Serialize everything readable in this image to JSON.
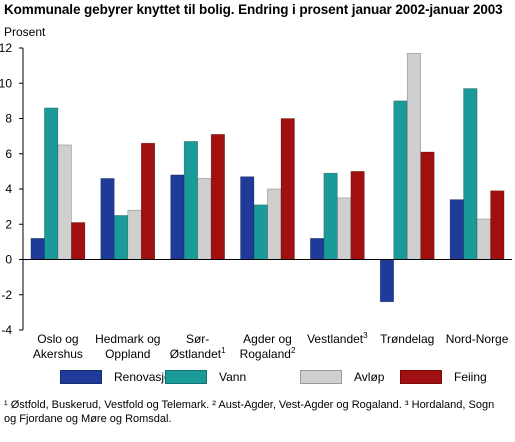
{
  "title": "Kommunale gebyrer knyttet til bolig. Endring i prosent januar 2002-januar 2003",
  "footnote": "¹ Østfold, Buskerud, Vestfold og Telemark. ² Aust-Agder, Vest-Agder og Rogaland. ³ Hordaland, Sogn og Fjordane og Møre og Romsdal.",
  "chart_data": {
    "type": "bar",
    "ylabel": "Prosent",
    "ylim": [
      -4,
      12
    ],
    "yticks": [
      -4,
      -2,
      0,
      2,
      4,
      6,
      8,
      10,
      12
    ],
    "grid": false,
    "legend_position": "bottom",
    "categories": [
      {
        "lines": [
          "Oslo og",
          "Akershus"
        ]
      },
      {
        "lines": [
          "Hedmark og",
          "Oppland"
        ]
      },
      {
        "lines": [
          "Sør-",
          "Østlandet"
        ],
        "sup": "1"
      },
      {
        "lines": [
          "Agder og",
          "Rogaland"
        ],
        "sup": "2"
      },
      {
        "lines": [
          "Vestlandet"
        ],
        "sup": "3"
      },
      {
        "lines": [
          "Trøndelag"
        ]
      },
      {
        "lines": [
          "Nord-Norge"
        ]
      }
    ],
    "series": [
      {
        "name": "Renovasjon",
        "color": "#1f3b9a",
        "values": [
          1.2,
          4.6,
          4.8,
          4.7,
          1.2,
          -2.4,
          3.4
        ]
      },
      {
        "name": "Vann",
        "color": "#1a9a98",
        "values": [
          8.6,
          2.5,
          6.7,
          3.1,
          4.9,
          9.0,
          9.7
        ]
      },
      {
        "name": "Avløp",
        "color": "#cfcfcf",
        "values": [
          6.5,
          2.8,
          4.6,
          4.0,
          3.5,
          11.7,
          2.3
        ]
      },
      {
        "name": "Feiing",
        "color": "#a01010",
        "values": [
          2.1,
          6.6,
          7.1,
          8.0,
          5.0,
          6.1,
          3.9
        ]
      }
    ]
  }
}
